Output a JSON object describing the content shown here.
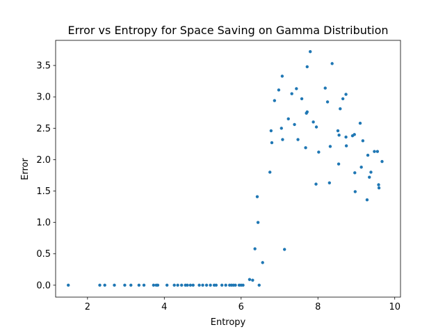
{
  "chart_data": {
    "type": "scatter",
    "title": "Error vs Entropy for Space Saving on Gamma Distribution",
    "xlabel": "Entropy",
    "ylabel": "Error",
    "xlim": [
      1.17,
      10.15
    ],
    "ylim": [
      -0.19,
      3.9
    ],
    "xticks": [
      2,
      4,
      6,
      8,
      10
    ],
    "xtick_labels": [
      "2",
      "4",
      "6",
      "8",
      "10"
    ],
    "yticks": [
      0.0,
      0.5,
      1.0,
      1.5,
      2.0,
      2.5,
      3.0,
      3.5
    ],
    "ytick_labels": [
      "0.0",
      "0.5",
      "1.0",
      "1.5",
      "2.0",
      "2.5",
      "3.0",
      "3.5"
    ],
    "grid": false,
    "marker_color": "#1f77b4",
    "series": [
      {
        "points": [
          [
            1.5,
            0.0
          ],
          [
            2.32,
            0.0
          ],
          [
            2.45,
            0.0
          ],
          [
            2.7,
            0.0
          ],
          [
            2.97,
            0.0
          ],
          [
            3.13,
            0.0
          ],
          [
            3.34,
            0.0
          ],
          [
            3.47,
            0.0
          ],
          [
            3.72,
            0.0
          ],
          [
            3.79,
            0.0
          ],
          [
            3.83,
            0.0
          ],
          [
            4.07,
            0.0
          ],
          [
            4.26,
            0.0
          ],
          [
            4.35,
            0.0
          ],
          [
            4.45,
            0.0
          ],
          [
            4.55,
            0.0
          ],
          [
            4.6,
            0.0
          ],
          [
            4.68,
            0.0
          ],
          [
            4.75,
            0.0
          ],
          [
            4.91,
            0.0
          ],
          [
            5.0,
            0.0
          ],
          [
            5.1,
            0.0
          ],
          [
            5.2,
            0.0
          ],
          [
            5.3,
            0.0
          ],
          [
            5.35,
            0.0
          ],
          [
            5.5,
            0.0
          ],
          [
            5.6,
            0.0
          ],
          [
            5.7,
            0.0
          ],
          [
            5.75,
            0.0
          ],
          [
            5.8,
            0.0
          ],
          [
            5.85,
            0.0
          ],
          [
            5.95,
            0.0
          ],
          [
            6.0,
            0.0
          ],
          [
            6.05,
            0.0
          ],
          [
            6.22,
            0.09
          ],
          [
            6.3,
            0.08
          ],
          [
            6.36,
            0.58
          ],
          [
            6.42,
            1.41
          ],
          [
            6.44,
            1.0
          ],
          [
            6.47,
            0.0
          ],
          [
            6.56,
            0.36
          ],
          [
            6.75,
            1.8
          ],
          [
            6.78,
            2.46
          ],
          [
            6.8,
            2.27
          ],
          [
            6.87,
            2.94
          ],
          [
            6.98,
            3.11
          ],
          [
            7.05,
            2.5
          ],
          [
            7.07,
            3.33
          ],
          [
            7.08,
            2.32
          ],
          [
            7.13,
            0.57
          ],
          [
            7.23,
            2.65
          ],
          [
            7.32,
            3.05
          ],
          [
            7.39,
            2.56
          ],
          [
            7.44,
            3.13
          ],
          [
            7.48,
            2.32
          ],
          [
            7.58,
            2.97
          ],
          [
            7.68,
            2.19
          ],
          [
            7.7,
            2.74
          ],
          [
            7.72,
            2.76
          ],
          [
            7.72,
            3.48
          ],
          [
            7.8,
            3.72
          ],
          [
            7.88,
            2.6
          ],
          [
            7.95,
            1.61
          ],
          [
            7.96,
            2.52
          ],
          [
            8.02,
            2.12
          ],
          [
            8.19,
            3.14
          ],
          [
            8.25,
            2.92
          ],
          [
            8.3,
            1.63
          ],
          [
            8.32,
            2.21
          ],
          [
            8.37,
            3.53
          ],
          [
            8.52,
            2.46
          ],
          [
            8.54,
            1.93
          ],
          [
            8.55,
            2.39
          ],
          [
            8.58,
            2.81
          ],
          [
            8.65,
            2.97
          ],
          [
            8.73,
            3.04
          ],
          [
            8.73,
            2.36
          ],
          [
            8.74,
            2.22
          ],
          [
            8.9,
            2.38
          ],
          [
            8.95,
            2.4
          ],
          [
            8.96,
            1.79
          ],
          [
            8.97,
            1.49
          ],
          [
            9.1,
            2.58
          ],
          [
            9.13,
            1.88
          ],
          [
            9.17,
            2.3
          ],
          [
            9.28,
            1.36
          ],
          [
            9.3,
            2.07
          ],
          [
            9.34,
            1.72
          ],
          [
            9.38,
            1.8
          ],
          [
            9.47,
            2.13
          ],
          [
            9.55,
            2.13
          ],
          [
            9.58,
            1.6
          ],
          [
            9.59,
            1.55
          ],
          [
            9.67,
            1.97
          ]
        ]
      }
    ]
  }
}
